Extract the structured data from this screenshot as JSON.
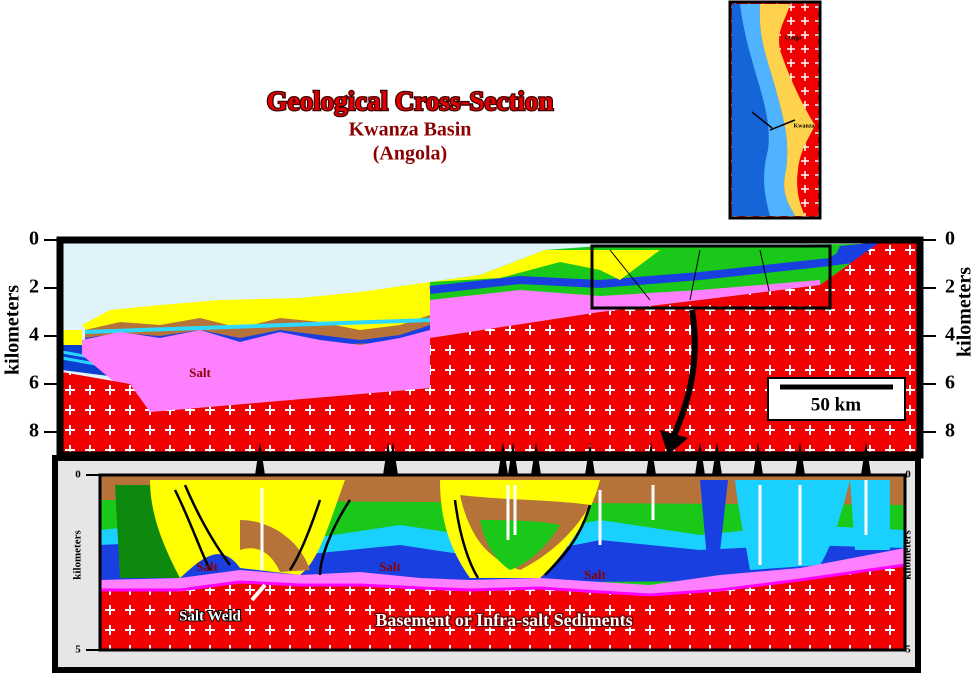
{
  "header": {
    "title": "Geological Cross-Section",
    "subtitle": "Kwanza Basin",
    "region": "(Angola)"
  },
  "map": {
    "labels": [
      "Congo",
      "Kwanza"
    ]
  },
  "upper_section": {
    "left_axis": {
      "label": "kilometers",
      "ticks": [
        0,
        2,
        4,
        6,
        8
      ]
    },
    "right_axis": {
      "label": "kilometers",
      "ticks": [
        0,
        2,
        4,
        6,
        8
      ]
    },
    "salt_label": "Salt",
    "scale_bar": "50 km"
  },
  "lower_section": {
    "left_axis": {
      "label": "kilometers",
      "ticks": [
        0,
        5
      ]
    },
    "right_axis": {
      "label": "kilometers",
      "ticks": [
        0,
        5
      ]
    },
    "labels": [
      "Salt",
      "Salt",
      "Salt",
      "Salt Weld",
      "Basement or Infra-salt Sediments"
    ]
  }
}
